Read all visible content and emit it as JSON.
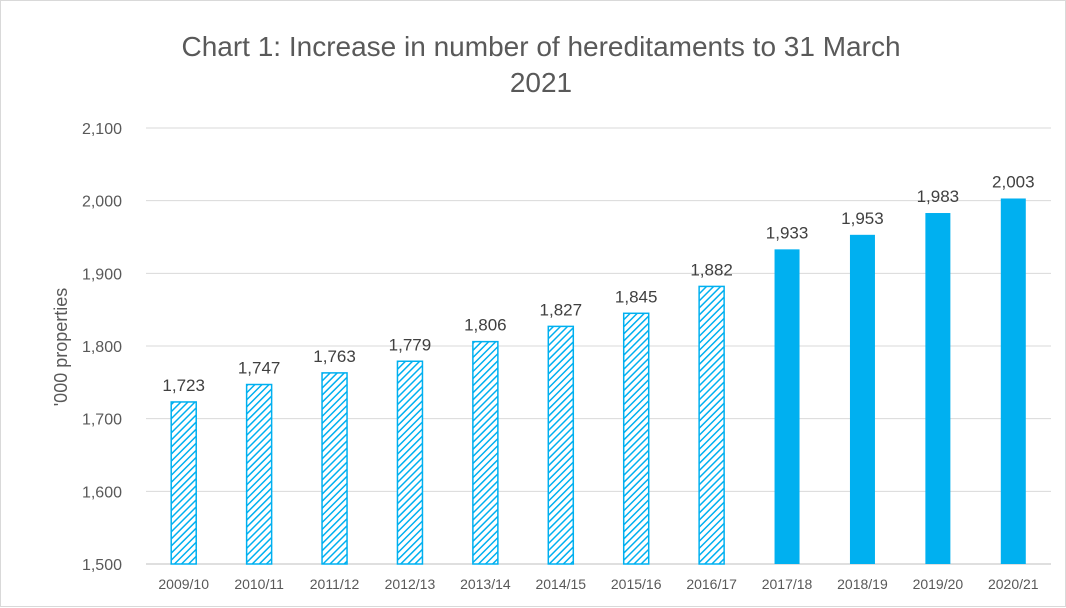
{
  "chart_data": {
    "type": "bar",
    "title_line1": "Chart 1: Increase in number of hereditaments to 31 March",
    "title_line2": "2021",
    "xlabel": "",
    "ylabel": "'000 properties",
    "ylim": [
      1500,
      2100
    ],
    "yticks": [
      "1,500",
      "1,600",
      "1,700",
      "1,800",
      "1,900",
      "2,000",
      "2,100"
    ],
    "ytick_values": [
      1500,
      1600,
      1700,
      1800,
      1900,
      2000,
      2100
    ],
    "grid": true,
    "categories": [
      "2009/10",
      "2010/11",
      "2011/12",
      "2012/13",
      "2013/14",
      "2014/15",
      "2015/16",
      "2016/17",
      "2017/18",
      "2018/19",
      "2019/20",
      "2020/21"
    ],
    "values": [
      1723,
      1747,
      1763,
      1779,
      1806,
      1827,
      1845,
      1882,
      1933,
      1953,
      1983,
      2003
    ],
    "data_labels": [
      "1,723",
      "1,747",
      "1,763",
      "1,779",
      "1,806",
      "1,827",
      "1,845",
      "1,882",
      "1,933",
      "1,953",
      "1,983",
      "2,003"
    ],
    "bar_style": [
      "hatched",
      "hatched",
      "hatched",
      "hatched",
      "hatched",
      "hatched",
      "hatched",
      "hatched",
      "solid",
      "solid",
      "solid",
      "solid"
    ],
    "bar_color": "#00b0f0",
    "gridline_color": "#d9d9d9"
  }
}
